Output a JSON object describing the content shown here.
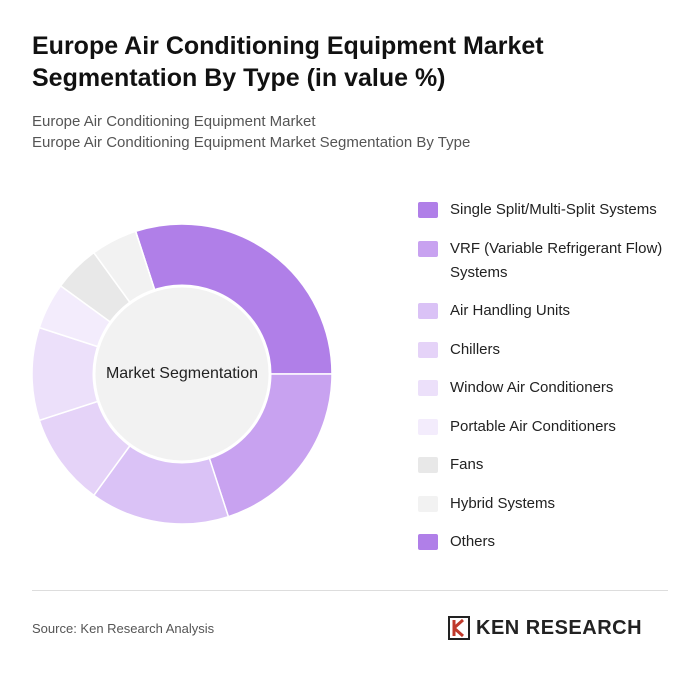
{
  "chart_data": {
    "type": "doughnut",
    "title": "Europe Air Conditioning Equipment Market Segmentation By Type (in value %)",
    "subtitles": [
      "Europe Air Conditioning Equipment Market",
      "Europe Air Conditioning Equipment Market Segmentation By Type"
    ],
    "center_label": "Market Segmentation",
    "categories": [
      "Single Split/Multi-Split Systems",
      "VRF (Variable Refrigerant Flow) Systems",
      "Air Handling Units",
      "Chillers",
      "Window Air Conditioners",
      "Portable Air Conditioners",
      "Fans",
      "Hybrid Systems",
      "Others"
    ],
    "values": [
      30,
      20,
      15,
      10,
      10,
      5,
      5,
      5,
      0
    ],
    "colors": [
      "#b07fe8",
      "#c8a2f0",
      "#dac2f6",
      "#e5d3f8",
      "#ece0fa",
      "#f3ecfc",
      "#e8e8e8",
      "#f2f2f2",
      "#b07fe8"
    ],
    "source": "Source: Ken Research Analysis",
    "logo": "KEN RESEARCH"
  }
}
